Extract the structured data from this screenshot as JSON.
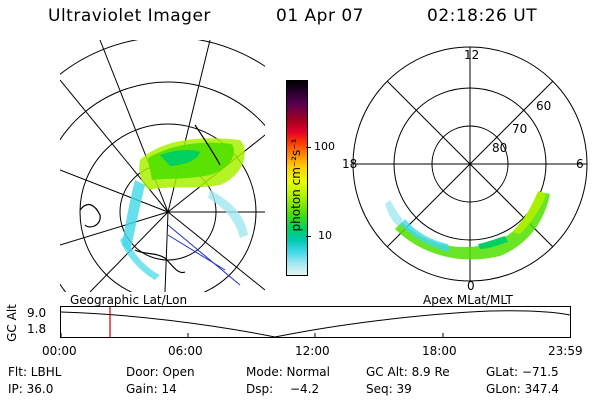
{
  "header": {
    "instrument": "Ultraviolet Imager",
    "date": "01 Apr 07",
    "time": "02:18:26 UT"
  },
  "colorbar": {
    "unit_label": "photon cm⁻²s⁻¹",
    "ticks": [
      "100",
      "10"
    ],
    "colors": [
      "#000000",
      "#2a0030",
      "#5a0050",
      "#a00020",
      "#e0002a",
      "#ff3a00",
      "#ff8800",
      "#ffcc00",
      "#e8ff00",
      "#a8f000",
      "#50e000",
      "#00d060",
      "#00c8b0",
      "#40d8e8",
      "#a0e8f0",
      "#e8f4f4"
    ]
  },
  "left_map": {
    "label": "Geographic Lat/Lon"
  },
  "right_map": {
    "label": "Apex MLat/MLT",
    "mlt_labels": {
      "top": "12",
      "left": "18",
      "right": "6",
      "bottom": "0"
    },
    "lat_labels": [
      "60",
      "70",
      "80"
    ]
  },
  "timeline": {
    "ylabel": "GC Alt",
    "yticks": [
      "9.0",
      "1.8"
    ],
    "xticks": [
      "00:00",
      "06:00",
      "12:00",
      "18:00",
      "23:59"
    ],
    "marker_color": "#cc0000"
  },
  "info": {
    "flt": "Flt: LBHL",
    "door": "Door: Open",
    "mode": "Mode: Normal",
    "gcalt": "GC Alt: 8.9 Re",
    "glat": "GLat: −71.5",
    "ip": "IP: 36.0",
    "gain": "Gain: 14",
    "dsp_label": "Dsp:",
    "dsp_value": "−4.2",
    "seq": "Seq: 39",
    "glon": "GLon: 347.4"
  }
}
